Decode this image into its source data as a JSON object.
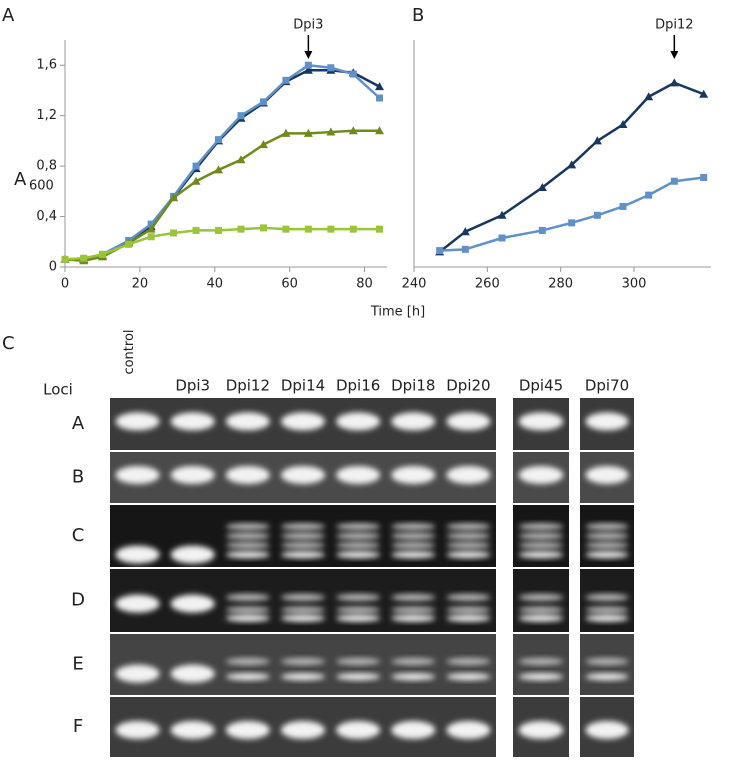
{
  "chart_data": [
    {
      "type": "line",
      "label": "A",
      "ylabel": "A",
      "ylabel_sub": "600",
      "xlabel": "Time [h]",
      "x": [
        0,
        5,
        10,
        17,
        23,
        29,
        35,
        41,
        47,
        53,
        59,
        65,
        71,
        77,
        84
      ],
      "xlim": [
        0,
        86
      ],
      "xticks": [
        0,
        20,
        40,
        60,
        80
      ],
      "ylim": [
        0,
        1.8
      ],
      "yticks": [
        0,
        {
          "value": 0.4,
          "label": "0,4"
        },
        {
          "value": 0.8,
          "label": "0,8"
        },
        {
          "value": 1.2,
          "label": "1,2"
        },
        {
          "value": 1.6,
          "label": "1,6"
        }
      ],
      "series": [
        {
          "color": "#17375e",
          "marker": "triangle",
          "values": [
            0.06,
            0.06,
            0.09,
            0.2,
            0.32,
            0.55,
            0.78,
            1.0,
            1.18,
            1.3,
            1.47,
            1.56,
            1.56,
            1.54,
            1.43
          ]
        },
        {
          "color": "#5f91c8",
          "marker": "square",
          "values": [
            0.06,
            0.06,
            0.1,
            0.21,
            0.34,
            0.56,
            0.8,
            1.01,
            1.2,
            1.31,
            1.48,
            1.6,
            1.58,
            1.53,
            1.34
          ]
        },
        {
          "color": "#6e8b1a",
          "marker": "triangle",
          "values": [
            0.06,
            0.05,
            0.08,
            0.19,
            0.3,
            0.55,
            0.68,
            0.77,
            0.85,
            0.97,
            1.06,
            1.06,
            1.07,
            1.08,
            1.08
          ]
        },
        {
          "color": "#9ac43a",
          "marker": "square",
          "values": [
            0.06,
            0.07,
            0.1,
            0.18,
            0.24,
            0.27,
            0.29,
            0.29,
            0.3,
            0.31,
            0.3,
            0.3,
            0.3,
            0.3,
            0.3
          ]
        }
      ],
      "annotation": {
        "text": "Dpi3",
        "x": 65
      }
    },
    {
      "type": "line",
      "label": "B",
      "x": [
        247,
        254,
        264,
        275,
        283,
        290,
        297,
        304,
        311,
        319
      ],
      "xlim": [
        240,
        321
      ],
      "xticks": [
        240,
        260,
        280,
        300
      ],
      "ylim": [
        0,
        1.8
      ],
      "series": [
        {
          "color": "#17375e",
          "marker": "triangle",
          "values": [
            0.12,
            0.28,
            0.41,
            0.63,
            0.81,
            1.0,
            1.13,
            1.35,
            1.46,
            1.37
          ]
        },
        {
          "color": "#5f91c8",
          "marker": "square",
          "values": [
            0.13,
            0.14,
            0.23,
            0.29,
            0.35,
            0.41,
            0.48,
            0.57,
            0.68,
            0.71
          ]
        }
      ],
      "annotation": {
        "text": "Dpi12",
        "x": 311
      }
    }
  ],
  "panel_c": {
    "label": "C",
    "loci_label": "Loci",
    "lanes": [
      "control",
      "Dpi3",
      "Dpi12",
      "Dpi14",
      "Dpi16",
      "Dpi18",
      "Dpi20"
    ],
    "extra_lanes": [
      "Dpi45",
      "Dpi70"
    ],
    "loci": [
      "A",
      "B",
      "C",
      "D",
      "E",
      "F"
    ]
  }
}
